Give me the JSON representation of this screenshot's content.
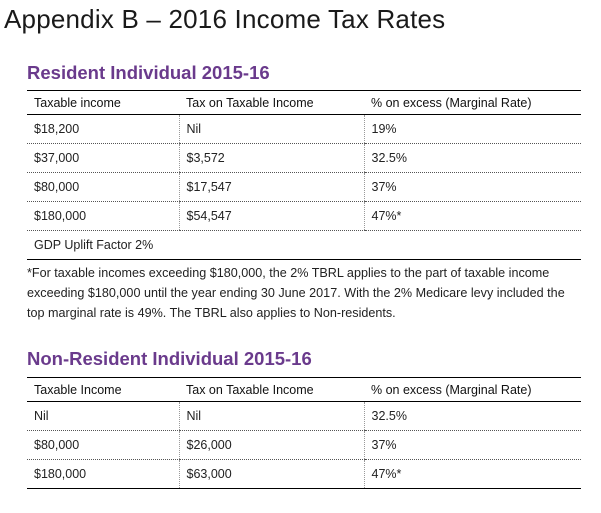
{
  "page_title": "Appendix B – 2016 Income Tax Rates",
  "resident": {
    "heading": "Resident Individual 2015-16",
    "columns": [
      "Taxable income",
      "Tax on Taxable Income",
      "% on excess (Marginal Rate)"
    ],
    "rows": [
      [
        "$18,200",
        "Nil",
        "19%"
      ],
      [
        "$37,000",
        "$3,572",
        "32.5%"
      ],
      [
        "$80,000",
        "$17,547",
        "37%"
      ],
      [
        "$180,000",
        "$54,547",
        "47%*"
      ]
    ],
    "uplift_note": "GDP Uplift Factor 2%"
  },
  "footnote": "*For taxable incomes exceeding $180,000, the 2% TBRL applies to the part of taxable income exceeding $180,000 until the year ending 30 June 2017. With the 2% Medicare levy included the top marginal rate is 49%. The TBRL also applies to Non-residents.",
  "non_resident": {
    "heading": "Non-Resident Individual 2015-16",
    "columns": [
      "Taxable Income",
      "Tax on Taxable Income",
      "% on excess (Marginal Rate)"
    ],
    "rows": [
      [
        "Nil",
        "Nil",
        "32.5%"
      ],
      [
        "$80,000",
        "$26,000",
        "37%"
      ],
      [
        "$180,000",
        "$63,000",
        "47%*"
      ]
    ]
  },
  "colors": {
    "heading": "#6a3a8c",
    "text": "#222222"
  }
}
